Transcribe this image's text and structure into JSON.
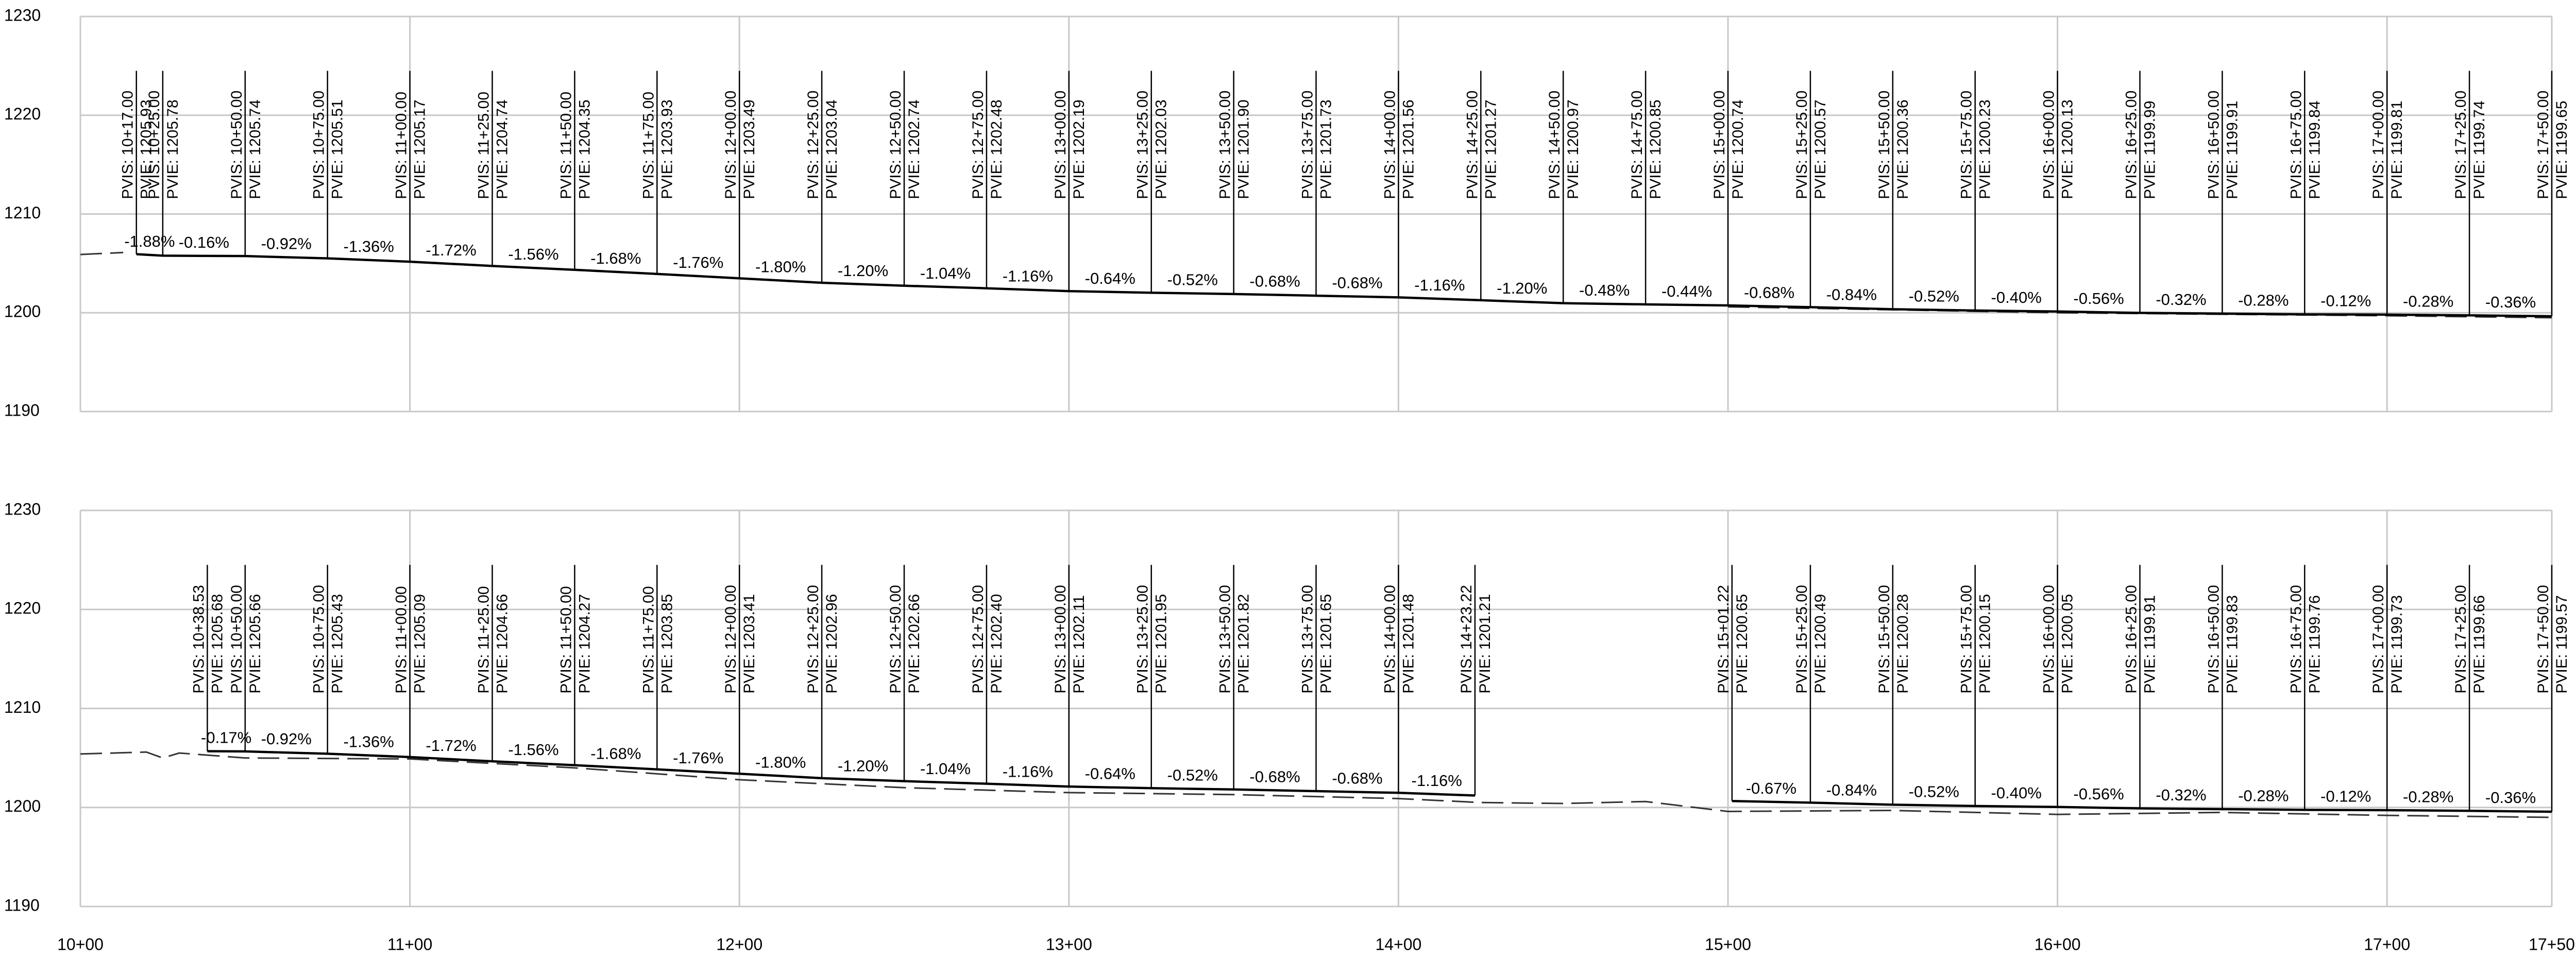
{
  "chart_data": {
    "type": "profile",
    "xlim": [
      1000,
      1750
    ],
    "xticks": [
      {
        "value": 1000,
        "label": "10+00"
      },
      {
        "value": 1100,
        "label": "11+00"
      },
      {
        "value": 1200,
        "label": "12+00"
      },
      {
        "value": 1300,
        "label": "13+00"
      },
      {
        "value": 1400,
        "label": "14+00"
      },
      {
        "value": 1500,
        "label": "15+00"
      },
      {
        "value": 1600,
        "label": "16+00"
      },
      {
        "value": 1700,
        "label": "17+00"
      },
      {
        "value": 1750,
        "label": "17+50"
      }
    ],
    "panels": [
      {
        "ylim": [
          1190,
          1230
        ],
        "yticks": [
          1190,
          1200,
          1210,
          1220,
          1230
        ],
        "alignments": [
          {
            "x": [
              1017,
              1025,
              1050,
              1075,
              1100,
              1125,
              1150,
              1175,
              1200,
              1225,
              1250,
              1275,
              1300,
              1325,
              1350,
              1375,
              1400,
              1425,
              1450,
              1475,
              1500,
              1525,
              1550,
              1575,
              1600,
              1625,
              1650,
              1675,
              1700,
              1725,
              1750
            ],
            "x_labels": [
              "PVIS: 10+17.00",
              "PVIS: 10+25.00",
              "PVIS: 10+50.00",
              "PVIS: 10+75.00",
              "PVIS: 11+00.00",
              "PVIS: 11+25.00",
              "PVIS: 11+50.00",
              "PVIS: 11+75.00",
              "PVIS: 12+00.00",
              "PVIS: 12+25.00",
              "PVIS: 12+50.00",
              "PVIS: 12+75.00",
              "PVIS: 13+00.00",
              "PVIS: 13+25.00",
              "PVIS: 13+50.00",
              "PVIS: 13+75.00",
              "PVIS: 14+00.00",
              "PVIS: 14+25.00",
              "PVIS: 14+50.00",
              "PVIS: 14+75.00",
              "PVIS: 15+00.00",
              "PVIS: 15+25.00",
              "PVIS: 15+50.00",
              "PVIS: 15+75.00",
              "PVIS: 16+00.00",
              "PVIS: 16+25.00",
              "PVIS: 16+50.00",
              "PVIS: 16+75.00",
              "PVIS: 17+00.00",
              "PVIS: 17+25.00",
              "PVIS: 17+50.00"
            ],
            "values": [
              1205.93,
              1205.78,
              1205.74,
              1205.51,
              1205.17,
              1204.74,
              1204.35,
              1203.93,
              1203.49,
              1203.04,
              1202.74,
              1202.48,
              1202.19,
              1202.03,
              1201.9,
              1201.73,
              1201.56,
              1201.27,
              1200.97,
              1200.85,
              1200.74,
              1200.57,
              1200.36,
              1200.23,
              1200.13,
              1199.99,
              1199.91,
              1199.84,
              1199.81,
              1199.74,
              1199.65
            ],
            "value_labels": [
              "PVIE: 1205.93",
              "PVIE: 1205.78",
              "PVIE: 1205.74",
              "PVIE: 1205.51",
              "PVIE: 1205.17",
              "PVIE: 1204.74",
              "PVIE: 1204.35",
              "PVIE: 1203.93",
              "PVIE: 1203.49",
              "PVIE: 1203.04",
              "PVIE: 1202.74",
              "PVIE: 1202.48",
              "PVIE: 1202.19",
              "PVIE: 1202.03",
              "PVIE: 1201.90",
              "PVIE: 1201.73",
              "PVIE: 1201.56",
              "PVIE: 1201.27",
              "PVIE: 1200.97",
              "PVIE: 1200.85",
              "PVIE: 1200.74",
              "PVIE: 1200.57",
              "PVIE: 1200.36",
              "PVIE: 1200.23",
              "PVIE: 1200.13",
              "PVIE: 1199.99",
              "PVIE: 1199.91",
              "PVIE: 1199.84",
              "PVIE: 1199.81",
              "PVIE: 1199.74",
              "PVIE: 1199.65"
            ],
            "grades": [
              -1.88,
              -0.16,
              -0.92,
              -1.36,
              -1.72,
              -1.56,
              -1.68,
              -1.76,
              -1.8,
              -1.2,
              -1.04,
              -1.16,
              -0.64,
              -0.52,
              -0.68,
              -0.68,
              -1.16,
              -1.2,
              -0.48,
              -0.44,
              -0.68,
              -0.84,
              -0.52,
              -0.4,
              -0.56,
              -0.32,
              -0.28,
              -0.12,
              -0.28,
              -0.36
            ],
            "grade_labels": [
              "-1.88%",
              "-0.16%",
              "-0.92%",
              "-1.36%",
              "-1.72%",
              "-1.56%",
              "-1.68%",
              "-1.76%",
              "-1.80%",
              "-1.20%",
              "-1.04%",
              "-1.16%",
              "-0.64%",
              "-0.52%",
              "-0.68%",
              "-0.68%",
              "-1.16%",
              "-1.20%",
              "-0.48%",
              "-0.44%",
              "-0.68%",
              "-0.84%",
              "-0.52%",
              "-0.40%",
              "-0.56%",
              "-0.32%",
              "-0.28%",
              "-0.12%",
              "-0.28%",
              "-0.36%"
            ]
          }
        ],
        "ground": {
          "x": [
            1000,
            1013,
            1200,
            1500,
            1600,
            1700,
            1750
          ],
          "values": [
            1205.9,
            1206.1,
            null,
            1200.6,
            1200.0,
            1199.7,
            1199.5
          ]
        }
      },
      {
        "ylim": [
          1190,
          1230
        ],
        "yticks": [
          1190,
          1200,
          1210,
          1220,
          1230
        ],
        "alignments": [
          {
            "x": [
              1038.53,
              1050,
              1075,
              1100,
              1125,
              1150,
              1175,
              1200,
              1225,
              1250,
              1275,
              1300,
              1325,
              1350,
              1375,
              1400,
              1423.22
            ],
            "x_labels": [
              "PVIS: 10+38.53",
              "PVIS: 10+50.00",
              "PVIS: 10+75.00",
              "PVIS: 11+00.00",
              "PVIS: 11+25.00",
              "PVIS: 11+50.00",
              "PVIS: 11+75.00",
              "PVIS: 12+00.00",
              "PVIS: 12+25.00",
              "PVIS: 12+50.00",
              "PVIS: 12+75.00",
              "PVIS: 13+00.00",
              "PVIS: 13+25.00",
              "PVIS: 13+50.00",
              "PVIS: 13+75.00",
              "PVIS: 14+00.00",
              "PVIS: 14+23.22"
            ],
            "values": [
              1205.68,
              1205.66,
              1205.43,
              1205.09,
              1204.66,
              1204.27,
              1203.85,
              1203.41,
              1202.96,
              1202.66,
              1202.4,
              1202.11,
              1201.95,
              1201.82,
              1201.65,
              1201.48,
              1201.21
            ],
            "value_labels": [
              "PVIE: 1205.68",
              "PVIE: 1205.66",
              "PVIE: 1205.43",
              "PVIE: 1205.09",
              "PVIE: 1204.66",
              "PVIE: 1204.27",
              "PVIE: 1203.85",
              "PVIE: 1203.41",
              "PVIE: 1202.96",
              "PVIE: 1202.66",
              "PVIE: 1202.40",
              "PVIE: 1202.11",
              "PVIE: 1201.95",
              "PVIE: 1201.82",
              "PVIE: 1201.65",
              "PVIE: 1201.48",
              "PVIE: 1201.21"
            ],
            "grades": [
              -0.17,
              -0.92,
              -1.36,
              -1.72,
              -1.56,
              -1.68,
              -1.76,
              -1.8,
              -1.2,
              -1.04,
              -1.16,
              -0.64,
              -0.52,
              -0.68,
              -0.68,
              -1.16
            ],
            "grade_labels": [
              "-0.17%",
              "-0.92%",
              "-1.36%",
              "-1.72%",
              "-1.56%",
              "-1.68%",
              "-1.76%",
              "-1.80%",
              "-1.20%",
              "-1.04%",
              "-1.16%",
              "-0.64%",
              "-0.52%",
              "-0.68%",
              "-0.68%",
              "-1.16%"
            ]
          },
          {
            "x": [
              1501.22,
              1525,
              1550,
              1575,
              1600,
              1625,
              1650,
              1675,
              1700,
              1725,
              1750
            ],
            "x_labels": [
              "PVIS: 15+01.22",
              "PVIS: 15+25.00",
              "PVIS: 15+50.00",
              "PVIS: 15+75.00",
              "PVIS: 16+00.00",
              "PVIS: 16+25.00",
              "PVIS: 16+50.00",
              "PVIS: 16+75.00",
              "PVIS: 17+00.00",
              "PVIS: 17+25.00",
              "PVIS: 17+50.00"
            ],
            "values": [
              1200.65,
              1200.49,
              1200.28,
              1200.15,
              1200.05,
              1199.91,
              1199.83,
              1199.76,
              1199.73,
              1199.66,
              1199.57
            ],
            "value_labels": [
              "PVIE: 1200.65",
              "PVIE: 1200.49",
              "PVIE: 1200.28",
              "PVIE: 1200.15",
              "PVIE: 1200.05",
              "PVIE: 1199.91",
              "PVIE: 1199.83",
              "PVIE: 1199.76",
              "PVIE: 1199.73",
              "PVIE: 1199.66",
              "PVIE: 1199.57"
            ],
            "grades": [
              -0.67,
              -0.84,
              -0.52,
              -0.4,
              -0.56,
              -0.32,
              -0.28,
              -0.12,
              -0.28,
              -0.36
            ],
            "grade_labels": [
              "-0.67%",
              "-0.84%",
              "-0.52%",
              "-0.40%",
              "-0.56%",
              "-0.32%",
              "-0.28%",
              "-0.12%",
              "-0.28%",
              "-0.36%"
            ]
          }
        ],
        "ground": {
          "x": [
            1000,
            1020,
            1025,
            1030,
            1050,
            1100,
            1150,
            1200,
            1250,
            1300,
            1350,
            1400,
            1425,
            1450,
            1475,
            1490,
            1500,
            1550,
            1600,
            1650,
            1700,
            1750
          ],
          "values": [
            1205.4,
            1205.6,
            1205.0,
            1205.5,
            1205.0,
            1204.9,
            1204.0,
            1202.8,
            1202.0,
            1201.5,
            1201.3,
            1200.9,
            1200.5,
            1200.4,
            1200.6,
            1200.0,
            1199.6,
            1199.7,
            1199.3,
            1199.5,
            1199.2,
            1199.0
          ]
        }
      }
    ]
  }
}
